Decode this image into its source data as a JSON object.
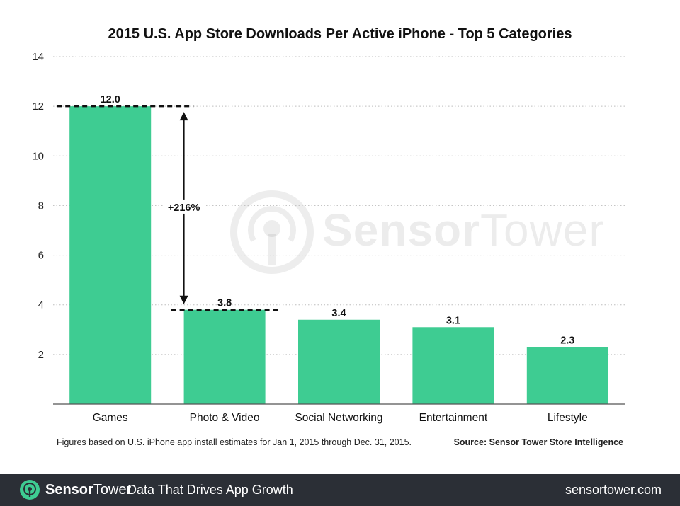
{
  "chart_data": {
    "type": "bar",
    "title": "2015 U.S. App Store Downloads Per Active iPhone - Top 5 Categories",
    "categories": [
      "Games",
      "Photo & Video",
      "Social Networking",
      "Entertainment",
      "Lifestyle"
    ],
    "values": [
      12.0,
      3.8,
      3.4,
      3.1,
      2.3
    ],
    "value_labels": [
      "12.0",
      "3.8",
      "3.4",
      "3.1",
      "2.3"
    ],
    "yticks": [
      2,
      4,
      6,
      8,
      10,
      12,
      14
    ],
    "ylim": [
      0,
      14
    ],
    "xlabel": "",
    "ylabel": "",
    "grid": "horizontal dotted",
    "bar_color": "#3ecc92",
    "annotation": {
      "text": "+216%",
      "from_value": 12.0,
      "to_value": 3.8,
      "from_category": 0,
      "to_category": 1
    }
  },
  "footnote": "Figures based on U.S. iPhone app install estimates for Jan 1, 2015 through Dec. 31, 2015.",
  "source": "Source: Sensor Tower Store Intelligence",
  "watermark": {
    "brand_bold": "Sensor",
    "brand_light": "Tower"
  },
  "footer": {
    "brand_bold": "Sensor",
    "brand_light": "Tower",
    "tagline": "Data That Drives App Growth",
    "url": "sensortower.com",
    "logo_color": "#3ecc92",
    "background": "#2b2f36"
  }
}
